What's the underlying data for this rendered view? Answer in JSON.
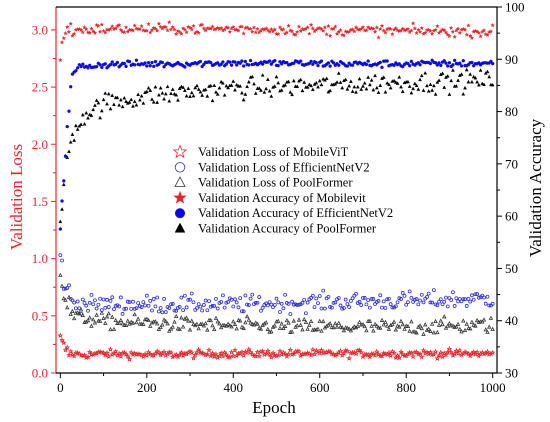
{
  "chart_data": {
    "type": "scatter",
    "xlabel": "Epoch",
    "ylabel_left": "Validation Loss",
    "ylabel_right": "Validation Accuracy",
    "xlim": [
      -10,
      1010
    ],
    "ylim_left": [
      0.0,
      3.2
    ],
    "ylim_right": [
      30,
      100
    ],
    "x_ticks": [
      0,
      200,
      400,
      600,
      800,
      1000
    ],
    "y_ticks_left": [
      "0.0",
      "0.5",
      "1.0",
      "1.5",
      "2.0",
      "2.5",
      "3.0"
    ],
    "y_ticks_right": [
      "30",
      "40",
      "50",
      "60",
      "70",
      "80",
      "90",
      "100"
    ],
    "legend_position": "center-left",
    "epochs": 1000,
    "sample_every": 4,
    "series": [
      {
        "name": "Validation Loss of MobileViT",
        "axis": "left",
        "marker": "open-star",
        "color": "#e8242a",
        "points": [
          [
            0,
            0.3
          ],
          [
            10,
            0.22
          ],
          [
            20,
            0.17
          ],
          [
            50,
            0.16
          ],
          [
            100,
            0.17
          ],
          [
            200,
            0.16
          ],
          [
            400,
            0.17
          ],
          [
            600,
            0.17
          ],
          [
            800,
            0.17
          ],
          [
            1000,
            0.17
          ]
        ],
        "noise": 0.03
      },
      {
        "name": "Validation Loss of EfficientNetV2",
        "axis": "left",
        "marker": "open-circle",
        "color": "#2b2bd6",
        "points": [
          [
            0,
            1.0
          ],
          [
            10,
            0.8
          ],
          [
            25,
            0.62
          ],
          [
            60,
            0.6
          ],
          [
            200,
            0.6
          ],
          [
            400,
            0.6
          ],
          [
            600,
            0.62
          ],
          [
            800,
            0.63
          ],
          [
            1000,
            0.65
          ]
        ],
        "noise": 0.07
      },
      {
        "name": "Validation Loss of PoolFormer",
        "axis": "left",
        "marker": "open-triangle",
        "color": "#333333",
        "points": [
          [
            0,
            0.9
          ],
          [
            10,
            0.65
          ],
          [
            30,
            0.5
          ],
          [
            100,
            0.45
          ],
          [
            300,
            0.42
          ],
          [
            600,
            0.4
          ],
          [
            800,
            0.4
          ],
          [
            1000,
            0.42
          ]
        ],
        "noise": 0.06
      },
      {
        "name": "Validation Accuracy of Mobilevit",
        "axis": "right",
        "marker": "filled-star",
        "color": "#e8242a",
        "points": [
          [
            0,
            91
          ],
          [
            5,
            94
          ],
          [
            15,
            95.5
          ],
          [
            100,
            95.8
          ],
          [
            400,
            95.8
          ],
          [
            700,
            95.5
          ],
          [
            1000,
            95.3
          ]
        ],
        "noise": 0.9
      },
      {
        "name": "Validation Accuracy of EfficientNetV2",
        "axis": "right",
        "marker": "filled-circle",
        "color": "#0a0ae6",
        "points": [
          [
            0,
            58
          ],
          [
            10,
            70
          ],
          [
            25,
            86
          ],
          [
            40,
            88.5
          ],
          [
            100,
            89
          ],
          [
            400,
            89.3
          ],
          [
            700,
            89.1
          ],
          [
            1000,
            89.2
          ]
        ],
        "noise": 0.6
      },
      {
        "name": "Validation Accuracy of PoolFormer",
        "axis": "right",
        "marker": "filled-triangle",
        "color": "#000000",
        "points": [
          [
            0,
            58
          ],
          [
            10,
            68
          ],
          [
            25,
            75
          ],
          [
            50,
            79
          ],
          [
            100,
            81.5
          ],
          [
            200,
            83
          ],
          [
            400,
            84.5
          ],
          [
            600,
            85
          ],
          [
            800,
            85.5
          ],
          [
            1000,
            86
          ]
        ],
        "noise": 1.8
      }
    ]
  },
  "colors": {
    "loss_axis": "#e8242a",
    "axis": "#000000"
  }
}
